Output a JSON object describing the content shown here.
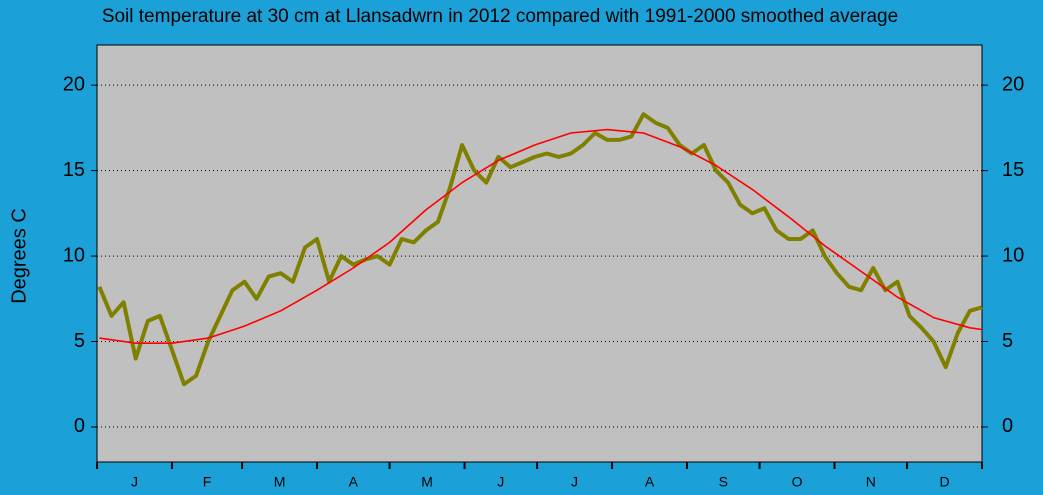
{
  "chart_data": {
    "type": "line",
    "title": "Soil temperature at 30 cm at Llansadwrn in 2012 compared with 1991-2000 smoothed average",
    "ylabel": "Degrees  C",
    "months": [
      "J",
      "F",
      "M",
      "A",
      "M",
      "J",
      "J",
      "A",
      "S",
      "O",
      "N",
      "D"
    ],
    "xlim": [
      0,
      366
    ],
    "xticks": [
      0,
      31,
      60,
      91,
      121,
      152,
      182,
      213,
      244,
      274,
      305,
      335,
      366
    ],
    "ylim": [
      -2.05,
      22.35
    ],
    "yticks": [
      0,
      5,
      10,
      15,
      20
    ],
    "grid": true,
    "series": [
      {
        "name": "2012",
        "color": "#808000",
        "x": [
          1,
          6,
          11,
          16,
          21,
          26,
          31,
          36,
          41,
          46,
          51,
          56,
          61,
          66,
          71,
          76,
          81,
          86,
          91,
          96,
          101,
          106,
          111,
          116,
          121,
          126,
          131,
          136,
          141,
          146,
          151,
          156,
          161,
          166,
          171,
          176,
          181,
          186,
          191,
          196,
          201,
          206,
          211,
          216,
          221,
          226,
          231,
          236,
          241,
          246,
          251,
          256,
          261,
          266,
          271,
          276,
          281,
          286,
          291,
          296,
          301,
          306,
          311,
          316,
          321,
          326,
          331,
          336,
          341,
          346,
          351,
          356,
          361,
          366
        ],
        "values": [
          8.2,
          6.5,
          7.3,
          4.0,
          6.2,
          6.5,
          4.5,
          2.5,
          3.0,
          5.0,
          6.5,
          8.0,
          8.5,
          7.5,
          8.8,
          9.0,
          8.5,
          10.5,
          11.0,
          8.5,
          10.0,
          9.5,
          9.8,
          10.0,
          9.5,
          11.0,
          10.8,
          11.5,
          12.0,
          14.0,
          16.5,
          15.0,
          14.3,
          15.8,
          15.2,
          15.5,
          15.8,
          16.0,
          15.8,
          16.0,
          16.5,
          17.2,
          16.8,
          16.8,
          17.0,
          18.3,
          17.8,
          17.5,
          16.5,
          16.0,
          16.5,
          15.0,
          14.3,
          13.0,
          12.5,
          12.8,
          11.5,
          11.0,
          11.0,
          11.5,
          10.0,
          9.0,
          8.2,
          8.0,
          9.3,
          8.0,
          8.5,
          6.5,
          5.8,
          5.0,
          3.5,
          5.5,
          6.8,
          7.0
        ]
      },
      {
        "name": "1991-2000 smoothed average",
        "color": "#ff0000",
        "x": [
          1,
          16,
          31,
          46,
          61,
          76,
          91,
          106,
          121,
          136,
          151,
          166,
          181,
          196,
          211,
          226,
          241,
          256,
          271,
          286,
          301,
          316,
          331,
          346,
          361,
          366
        ],
        "values": [
          5.2,
          4.9,
          4.9,
          5.2,
          5.9,
          6.8,
          8.0,
          9.3,
          10.8,
          12.7,
          14.3,
          15.6,
          16.5,
          17.2,
          17.4,
          17.2,
          16.4,
          15.3,
          13.9,
          12.3,
          10.6,
          9.1,
          7.6,
          6.4,
          5.8,
          5.7
        ]
      }
    ]
  }
}
